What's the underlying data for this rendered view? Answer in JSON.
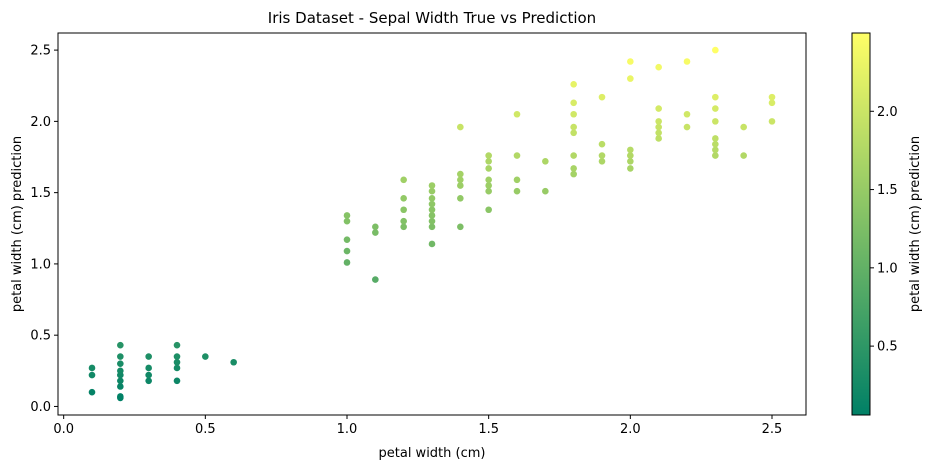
{
  "chart_data": {
    "type": "scatter",
    "title": "Iris Dataset - Sepal Width True vs Prediction",
    "xlabel": "petal width (cm)",
    "ylabel": "petal width (cm) prediction",
    "colorbar_label": "petal width (cm) prediction",
    "colormap": "summer",
    "colormap_colors": [
      "#008066",
      "#ffff66"
    ],
    "point_color_range": [
      0.06,
      2.5
    ],
    "xlim": [
      -0.02,
      2.62
    ],
    "ylim": [
      -0.06,
      2.62
    ],
    "x_ticks": [
      0.0,
      0.5,
      1.0,
      1.5,
      2.0,
      2.5
    ],
    "x_tick_labels": [
      "0.0",
      "0.5",
      "1.0",
      "1.5",
      "2.0",
      "2.5"
    ],
    "y_ticks": [
      0.0,
      0.5,
      1.0,
      1.5,
      2.0,
      2.5
    ],
    "y_tick_labels": [
      "0.0",
      "0.5",
      "1.0",
      "1.5",
      "2.0",
      "2.5"
    ],
    "colorbar_ticks": [
      0.5,
      1.0,
      1.5,
      2.0
    ],
    "colorbar_tick_labels": [
      "0.5",
      "1.0",
      "1.5",
      "2.0"
    ],
    "grid": false,
    "points": [
      [
        0.1,
        0.1
      ],
      [
        0.1,
        0.22
      ],
      [
        0.1,
        0.27
      ],
      [
        0.2,
        0.06
      ],
      [
        0.2,
        0.07
      ],
      [
        0.2,
        0.14
      ],
      [
        0.2,
        0.18
      ],
      [
        0.2,
        0.22
      ],
      [
        0.2,
        0.25
      ],
      [
        0.2,
        0.3
      ],
      [
        0.2,
        0.35
      ],
      [
        0.2,
        0.43
      ],
      [
        0.3,
        0.18
      ],
      [
        0.3,
        0.22
      ],
      [
        0.3,
        0.27
      ],
      [
        0.3,
        0.35
      ],
      [
        0.4,
        0.18
      ],
      [
        0.4,
        0.27
      ],
      [
        0.4,
        0.31
      ],
      [
        0.4,
        0.35
      ],
      [
        0.4,
        0.43
      ],
      [
        0.5,
        0.35
      ],
      [
        0.6,
        0.31
      ],
      [
        1.0,
        1.01
      ],
      [
        1.0,
        1.09
      ],
      [
        1.0,
        1.17
      ],
      [
        1.0,
        1.3
      ],
      [
        1.0,
        1.34
      ],
      [
        1.1,
        0.89
      ],
      [
        1.1,
        1.22
      ],
      [
        1.1,
        1.26
      ],
      [
        1.2,
        1.26
      ],
      [
        1.2,
        1.3
      ],
      [
        1.2,
        1.38
      ],
      [
        1.2,
        1.46
      ],
      [
        1.2,
        1.59
      ],
      [
        1.3,
        1.14
      ],
      [
        1.3,
        1.26
      ],
      [
        1.3,
        1.3
      ],
      [
        1.3,
        1.34
      ],
      [
        1.3,
        1.38
      ],
      [
        1.3,
        1.42
      ],
      [
        1.3,
        1.46
      ],
      [
        1.3,
        1.51
      ],
      [
        1.3,
        1.55
      ],
      [
        1.4,
        1.26
      ],
      [
        1.4,
        1.46
      ],
      [
        1.4,
        1.55
      ],
      [
        1.4,
        1.59
      ],
      [
        1.4,
        1.63
      ],
      [
        1.4,
        1.96
      ],
      [
        1.5,
        1.38
      ],
      [
        1.5,
        1.51
      ],
      [
        1.5,
        1.55
      ],
      [
        1.5,
        1.59
      ],
      [
        1.5,
        1.67
      ],
      [
        1.5,
        1.72
      ],
      [
        1.5,
        1.76
      ],
      [
        1.6,
        1.51
      ],
      [
        1.6,
        1.59
      ],
      [
        1.6,
        1.76
      ],
      [
        1.6,
        2.05
      ],
      [
        1.7,
        1.51
      ],
      [
        1.7,
        1.72
      ],
      [
        1.8,
        1.63
      ],
      [
        1.8,
        1.67
      ],
      [
        1.8,
        1.76
      ],
      [
        1.8,
        1.92
      ],
      [
        1.8,
        1.96
      ],
      [
        1.8,
        2.05
      ],
      [
        1.8,
        2.13
      ],
      [
        1.8,
        2.26
      ],
      [
        1.9,
        1.72
      ],
      [
        1.9,
        1.76
      ],
      [
        1.9,
        1.84
      ],
      [
        1.9,
        2.17
      ],
      [
        2.0,
        1.67
      ],
      [
        2.0,
        1.72
      ],
      [
        2.0,
        1.76
      ],
      [
        2.0,
        1.8
      ],
      [
        2.0,
        2.3
      ],
      [
        2.0,
        2.42
      ],
      [
        2.1,
        1.88
      ],
      [
        2.1,
        1.92
      ],
      [
        2.1,
        1.96
      ],
      [
        2.1,
        2.0
      ],
      [
        2.1,
        2.09
      ],
      [
        2.1,
        2.38
      ],
      [
        2.2,
        1.96
      ],
      [
        2.2,
        2.05
      ],
      [
        2.2,
        2.42
      ],
      [
        2.3,
        1.76
      ],
      [
        2.3,
        1.8
      ],
      [
        2.3,
        1.84
      ],
      [
        2.3,
        1.88
      ],
      [
        2.3,
        2.0
      ],
      [
        2.3,
        2.09
      ],
      [
        2.3,
        2.17
      ],
      [
        2.3,
        2.5
      ],
      [
        2.4,
        1.76
      ],
      [
        2.4,
        1.96
      ],
      [
        2.5,
        2.0
      ],
      [
        2.5,
        2.13
      ],
      [
        2.5,
        2.17
      ]
    ]
  }
}
